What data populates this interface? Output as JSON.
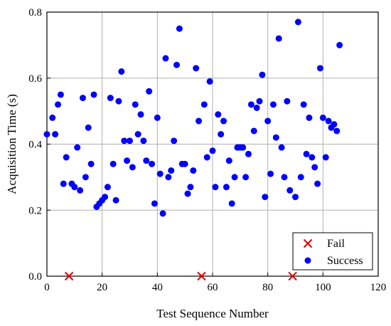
{
  "chart_data": {
    "type": "scatter",
    "xlabel": "Test Sequence Number",
    "ylabel": "Acquisition Time (s)",
    "xlim": [
      0,
      120
    ],
    "ylim": [
      0,
      0.8
    ],
    "xticks": [
      0,
      20,
      40,
      60,
      80,
      100,
      120
    ],
    "yticks": [
      0.0,
      0.2,
      0.4,
      0.6,
      0.8
    ],
    "xtick_labels": [
      "0",
      "20",
      "40",
      "60",
      "80",
      "100",
      "120"
    ],
    "ytick_labels": [
      "0.0",
      "0.2",
      "0.4",
      "0.6",
      "0.8"
    ],
    "grid": true,
    "legend_position": "bottom-right",
    "series": [
      {
        "name": "Fail",
        "marker": "x",
        "color": "#e00000",
        "x": [
          8,
          56,
          89
        ],
        "y": [
          0,
          0,
          0
        ]
      },
      {
        "name": "Success",
        "marker": "circle",
        "color": "#0000ff",
        "x": [
          0,
          2,
          3,
          4,
          5,
          6,
          7,
          9,
          10,
          11,
          12,
          13,
          14,
          15,
          16,
          17,
          18,
          19,
          20,
          21,
          22,
          23,
          24,
          25,
          26,
          27,
          28,
          29,
          30,
          31,
          32,
          33,
          34,
          35,
          36,
          37,
          38,
          39,
          40,
          41,
          42,
          43,
          44,
          45,
          46,
          47,
          48,
          49,
          50,
          51,
          52,
          53,
          54,
          55,
          57,
          58,
          59,
          60,
          61,
          62,
          63,
          64,
          65,
          66,
          67,
          68,
          69,
          70,
          71,
          72,
          73,
          74,
          75,
          76,
          77,
          78,
          79,
          80,
          81,
          82,
          83,
          84,
          85,
          86,
          87,
          88,
          90,
          91,
          92,
          93,
          94,
          95,
          96,
          97,
          98,
          99,
          100,
          101,
          102,
          103,
          104,
          105,
          106
        ],
        "y": [
          0.43,
          0.48,
          0.43,
          0.52,
          0.55,
          0.28,
          0.36,
          0.28,
          0.27,
          0.39,
          0.26,
          0.54,
          0.3,
          0.45,
          0.34,
          0.55,
          0.21,
          0.22,
          0.23,
          0.24,
          0.27,
          0.54,
          0.34,
          0.23,
          0.53,
          0.62,
          0.41,
          0.35,
          0.41,
          0.33,
          0.52,
          0.43,
          0.49,
          0.41,
          0.35,
          0.56,
          0.34,
          0.22,
          0.48,
          0.31,
          0.19,
          0.66,
          0.3,
          0.32,
          0.41,
          0.64,
          0.75,
          0.34,
          0.34,
          0.25,
          0.27,
          0.32,
          0.63,
          0.47,
          0.52,
          0.36,
          0.59,
          0.38,
          0.27,
          0.49,
          0.43,
          0.47,
          0.27,
          0.35,
          0.22,
          0.3,
          0.39,
          0.39,
          0.39,
          0.3,
          0.37,
          0.52,
          0.44,
          0.51,
          0.53,
          0.61,
          0.24,
          0.47,
          0.31,
          0.52,
          0.42,
          0.72,
          0.39,
          0.3,
          0.53,
          0.26,
          0.24,
          0.77,
          0.3,
          0.52,
          0.37,
          0.48,
          0.36,
          0.33,
          0.28,
          0.63,
          0.48,
          0.36,
          0.47,
          0.45,
          0.46,
          0.44,
          0.7
        ]
      }
    ]
  }
}
